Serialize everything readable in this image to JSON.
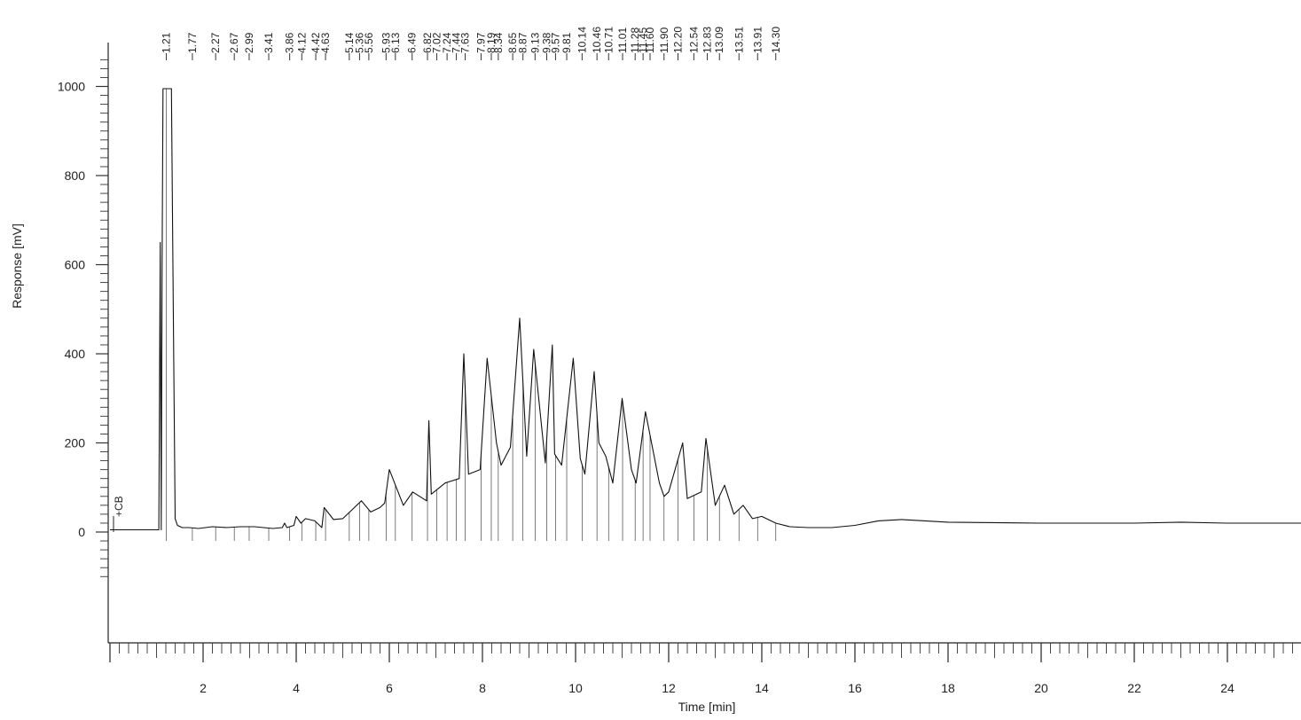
{
  "chart_data": {
    "type": "line",
    "title": "",
    "xlabel": "Time [min]",
    "ylabel": "Response [mV]",
    "xlim": [
      0,
      25.6
    ],
    "ylim": [
      -250,
      1080
    ],
    "xticks": [
      "2",
      "4",
      "6",
      "8",
      "10",
      "12",
      "14",
      "16",
      "18",
      "20",
      "22",
      "24"
    ],
    "yticks": [
      "0",
      "200",
      "400",
      "600",
      "800",
      "1000"
    ],
    "baseline_marker": "+CB",
    "grid": false,
    "series": [
      {
        "name": "",
        "x": [
          0.0,
          1.05,
          1.08,
          1.1,
          1.12,
          1.14,
          1.16,
          1.18,
          1.25,
          1.32,
          1.36,
          1.4,
          1.45,
          1.55,
          1.7,
          1.9,
          2.2,
          2.5,
          2.8,
          3.1,
          3.5,
          3.7,
          3.75,
          3.8,
          3.95,
          4.0,
          4.1,
          4.2,
          4.4,
          4.55,
          4.6,
          4.8,
          5.0,
          5.2,
          5.4,
          5.6,
          5.8,
          5.9,
          6.0,
          6.3,
          6.5,
          6.8,
          6.85,
          6.9,
          7.2,
          7.5,
          7.6,
          7.7,
          7.95,
          8.1,
          8.3,
          8.4,
          8.6,
          8.8,
          8.95,
          9.1,
          9.35,
          9.5,
          9.55,
          9.7,
          9.95,
          10.1,
          10.2,
          10.4,
          10.5,
          10.65,
          10.8,
          11.0,
          11.2,
          11.3,
          11.5,
          11.8,
          11.9,
          12.0,
          12.3,
          12.4,
          12.7,
          12.8,
          13.0,
          13.2,
          13.4,
          13.6,
          13.8,
          14.0,
          14.3,
          14.6,
          15.0,
          15.5,
          16.0,
          16.5,
          17.0,
          17.5,
          18.0,
          20.0,
          22.0,
          23.0,
          24.0,
          25.6
        ],
        "y": [
          5,
          5,
          650,
          5,
          600,
          995,
          995,
          995,
          995,
          995,
          500,
          30,
          15,
          10,
          10,
          8,
          12,
          10,
          12,
          12,
          8,
          10,
          20,
          10,
          15,
          35,
          20,
          30,
          25,
          10,
          55,
          28,
          30,
          50,
          70,
          45,
          55,
          65,
          140,
          60,
          90,
          70,
          250,
          85,
          110,
          120,
          400,
          130,
          140,
          390,
          200,
          150,
          190,
          480,
          170,
          410,
          155,
          420,
          175,
          150,
          390,
          165,
          130,
          360,
          200,
          170,
          110,
          300,
          140,
          110,
          270,
          110,
          80,
          90,
          200,
          75,
          90,
          210,
          60,
          105,
          40,
          60,
          30,
          35,
          20,
          12,
          10,
          10,
          15,
          25,
          28,
          25,
          22,
          20,
          20,
          22,
          20,
          20
        ]
      }
    ],
    "peak_labels": [
      "1.21",
      "1.77",
      "2.27",
      "2.67",
      "2.99",
      "3.41",
      "3.86",
      "4.12",
      "4.42",
      "4.63",
      "5.14",
      "5.36",
      "5.56",
      "5.93",
      "6.13",
      "6.49",
      "6.82",
      "7.02",
      "7.24",
      "7.44",
      "7.63",
      "7.97",
      "8.19",
      "8.34",
      "8.65",
      "8.87",
      "9.13",
      "9.38",
      "9.57",
      "9.81",
      "10.14",
      "10.46",
      "10.71",
      "11.01",
      "11.28",
      "11.45",
      "11.60",
      "11.90",
      "12.20",
      "12.54",
      "12.83",
      "13.09",
      "13.51",
      "13.91",
      "14.30"
    ]
  }
}
